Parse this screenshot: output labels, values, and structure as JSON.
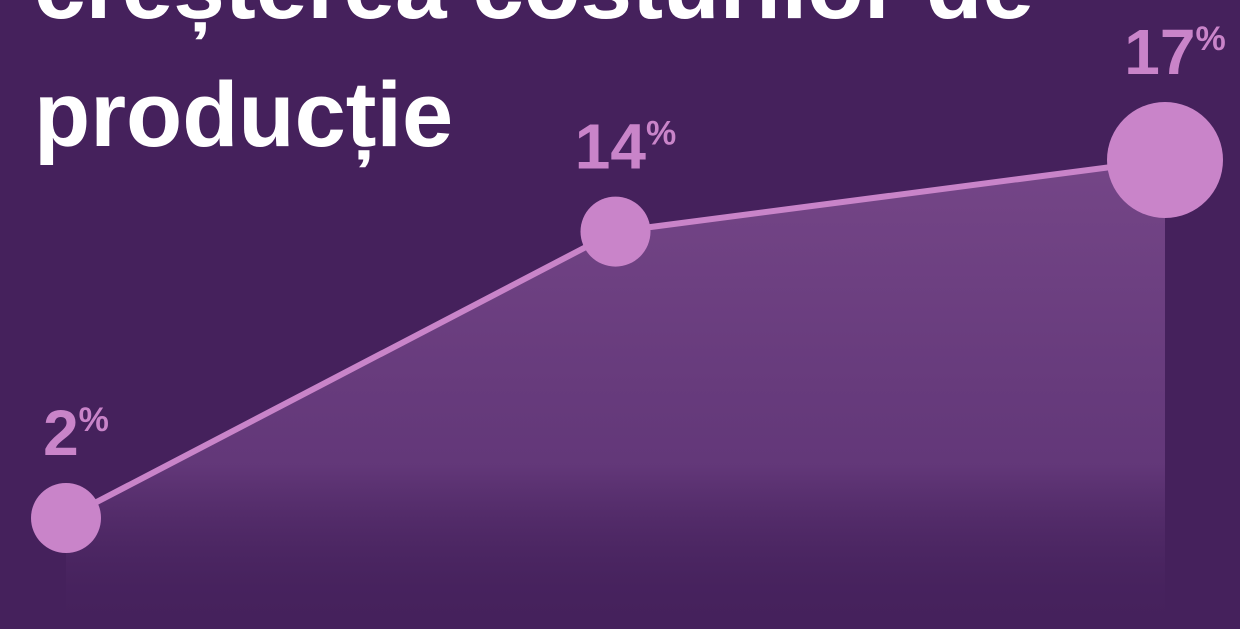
{
  "chart_data": {
    "type": "line",
    "title": [
      "creșterea costurilor de",
      "producție"
    ],
    "values": [
      2,
      14,
      17
    ],
    "unit": "%",
    "color": "#c984c9"
  }
}
